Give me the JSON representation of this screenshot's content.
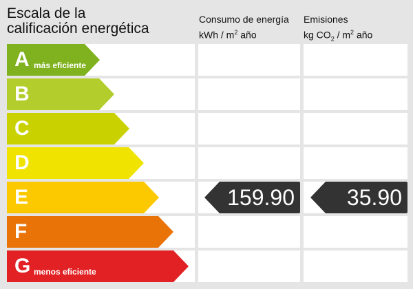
{
  "title_line1": "Escala de la",
  "title_line2": "calificación energética",
  "col1": {
    "line1": "Consumo de energía",
    "unit_a": "kWh / m",
    "sup": "2",
    "unit_b": " año"
  },
  "col2": {
    "line1": "Emisiones",
    "unit_a": "kg CO",
    "sub": "2",
    "unit_b": " / m",
    "sup": "2",
    "unit_c": " año"
  },
  "ratings": [
    {
      "letter": "A",
      "desc": "más eficiente",
      "color": "#7fb21e"
    },
    {
      "letter": "B",
      "desc": "",
      "color": "#b3cd2c"
    },
    {
      "letter": "C",
      "desc": "",
      "color": "#c9d200"
    },
    {
      "letter": "D",
      "desc": "",
      "color": "#f0e300"
    },
    {
      "letter": "E",
      "desc": "",
      "color": "#fcc900"
    },
    {
      "letter": "F",
      "desc": "",
      "color": "#ea7307"
    },
    {
      "letter": "G",
      "desc": "menos eficiente",
      "color": "#e22124"
    }
  ],
  "current_rating": "E",
  "consumption_value": "159.90",
  "emissions_value": "35.90",
  "indicator_color": "#333333"
}
